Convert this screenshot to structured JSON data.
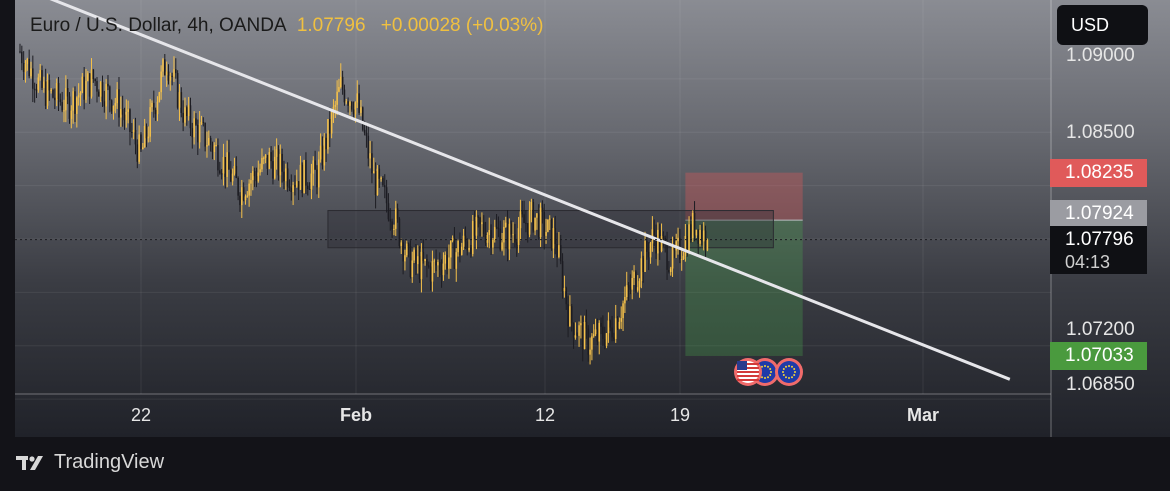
{
  "header": {
    "symbol": "Euro / U.S. Dollar, 4h, OANDA",
    "price": "1.07796",
    "change": "+0.00028 (+0.03%)"
  },
  "currency_button": {
    "label": "USD"
  },
  "price_labels": {
    "stop": "1.08235",
    "entry": "1.07924",
    "current": "1.07796",
    "countdown": "04:13",
    "target": "1.07033"
  },
  "footer": {
    "brand": "TradingView"
  },
  "colors": {
    "bull": "#f4c04a",
    "bear": "#1c1c22",
    "stop_zone": "#e05a5a",
    "target_zone": "#4caf50",
    "trendline": "#e6e6ea"
  },
  "icons": [
    "us-flag-icon",
    "eu-flag-icon",
    "eu-flag-icon"
  ],
  "chart_data": {
    "type": "candlestick",
    "timeframe": "4h",
    "x_ticks": [
      "22",
      "Feb",
      "12",
      "19",
      "Mar"
    ],
    "y_ticks": [
      "1.09000",
      "1.08500",
      "1.07200",
      "1.06850"
    ],
    "ylim": [
      1.0668,
      1.0922
    ],
    "grid": true,
    "close_path": [
      {
        "t": 0,
        "p": 1.0903
      },
      {
        "t": 12,
        "p": 1.0878
      },
      {
        "t": 26,
        "p": 1.0868
      },
      {
        "t": 40,
        "p": 1.0885
      },
      {
        "t": 54,
        "p": 1.0868
      },
      {
        "t": 66,
        "p": 1.0835
      },
      {
        "t": 80,
        "p": 1.0898
      },
      {
        "t": 90,
        "p": 1.086
      },
      {
        "t": 106,
        "p": 1.084
      },
      {
        "t": 120,
        "p": 1.0812
      },
      {
        "t": 136,
        "p": 1.0832
      },
      {
        "t": 150,
        "p": 1.082
      },
      {
        "t": 162,
        "p": 1.0822
      },
      {
        "t": 175,
        "p": 1.088
      },
      {
        "t": 184,
        "p": 1.0868
      },
      {
        "t": 193,
        "p": 1.082
      },
      {
        "t": 204,
        "p": 1.0795
      },
      {
        "t": 212,
        "p": 1.0765
      },
      {
        "t": 224,
        "p": 1.076
      },
      {
        "t": 238,
        "p": 1.0772
      },
      {
        "t": 252,
        "p": 1.0787
      },
      {
        "t": 266,
        "p": 1.0782
      },
      {
        "t": 280,
        "p": 1.0795
      },
      {
        "t": 292,
        "p": 1.078
      },
      {
        "t": 300,
        "p": 1.0727
      },
      {
        "t": 310,
        "p": 1.0712
      },
      {
        "t": 322,
        "p": 1.072
      },
      {
        "t": 334,
        "p": 1.075
      },
      {
        "t": 346,
        "p": 1.0783
      },
      {
        "t": 356,
        "p": 1.0765
      },
      {
        "t": 368,
        "p": 1.079
      },
      {
        "t": 375,
        "p": 1.07796
      }
    ],
    "trendline": [
      {
        "t": -20,
        "p": 1.0955
      },
      {
        "t": 540,
        "p": 1.0688
      }
    ],
    "resistance_zone": {
      "t0": 168,
      "t1": 411,
      "p_high": 1.0798,
      "p_low": 1.079
    },
    "position": {
      "direction": "short",
      "t0": 363,
      "t1": 427,
      "entry": 1.07924,
      "stop": 1.08235,
      "target": 1.07033
    },
    "current_price": 1.07796
  }
}
